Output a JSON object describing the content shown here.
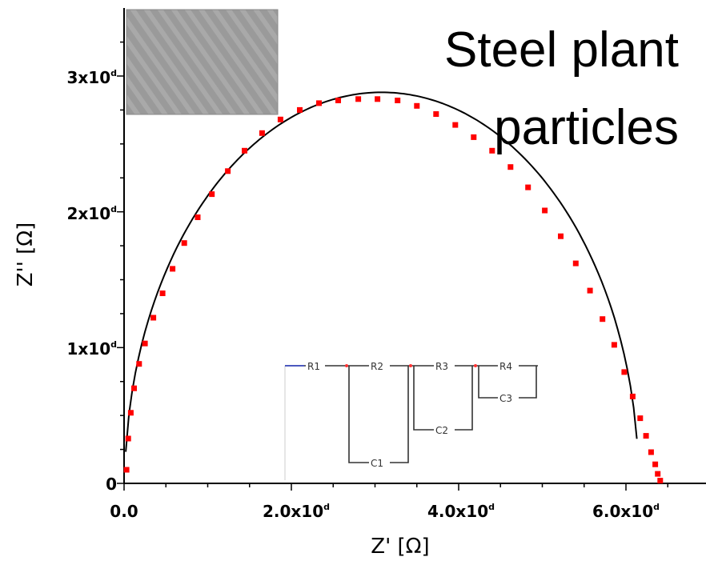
{
  "chart_data": {
    "type": "scatter",
    "title": "Steel plant particles",
    "title_lines": [
      "Steel plant",
      "particles"
    ],
    "xlabel": "Z' [Ω]",
    "ylabel": "Z'' [Ω]",
    "xlim": [
      0,
      7.0
    ],
    "ylim": [
      0,
      3.45
    ],
    "x_ticks": [
      {
        "value": 0,
        "base": "0.0",
        "exp": ""
      },
      {
        "value": 2,
        "base": "2.0x10",
        "exp": "d"
      },
      {
        "value": 4,
        "base": "4.0x10",
        "exp": "d"
      },
      {
        "value": 6,
        "base": "6.0x10",
        "exp": "d"
      }
    ],
    "y_ticks": [
      {
        "value": 0,
        "base": "0",
        "exp": ""
      },
      {
        "value": 1,
        "base": "1x10",
        "exp": "d"
      },
      {
        "value": 2,
        "base": "2x10",
        "exp": "d"
      },
      {
        "value": 3,
        "base": "3x10",
        "exp": "d"
      }
    ],
    "grid": false,
    "series": [
      {
        "kind": "markers",
        "color": "#ff0000",
        "x": [
          0.03,
          0.05,
          0.08,
          0.12,
          0.18,
          0.25,
          0.35,
          0.46,
          0.58,
          0.72,
          0.88,
          1.05,
          1.24,
          1.44,
          1.65,
          1.87,
          2.1,
          2.33,
          2.56,
          2.8,
          3.03,
          3.27,
          3.5,
          3.73,
          3.96,
          4.18,
          4.4,
          4.62,
          4.83,
          5.03,
          5.22,
          5.4,
          5.57,
          5.72,
          5.86,
          5.98,
          6.08,
          6.17,
          6.24,
          6.3,
          6.35,
          6.38,
          6.41
        ],
        "y": [
          0.1,
          0.33,
          0.52,
          0.7,
          0.88,
          1.03,
          1.22,
          1.4,
          1.58,
          1.77,
          1.96,
          2.13,
          2.3,
          2.45,
          2.58,
          2.68,
          2.75,
          2.8,
          2.82,
          2.83,
          2.83,
          2.82,
          2.78,
          2.72,
          2.64,
          2.55,
          2.45,
          2.33,
          2.18,
          2.01,
          1.82,
          1.62,
          1.42,
          1.21,
          1.02,
          0.82,
          0.64,
          0.48,
          0.35,
          0.23,
          0.14,
          0.07,
          0.02
        ]
      },
      {
        "kind": "fit-line",
        "color": "#000000",
        "center_x": 3.08,
        "radius_x": 3.07,
        "radius_y": 2.88,
        "x_start": 0.02,
        "x_end": 6.13
      }
    ],
    "inset_micrograph": true,
    "circuit_labels": [
      "R1",
      "R2",
      "R3",
      "R4",
      "C1",
      "C2",
      "C3"
    ]
  }
}
